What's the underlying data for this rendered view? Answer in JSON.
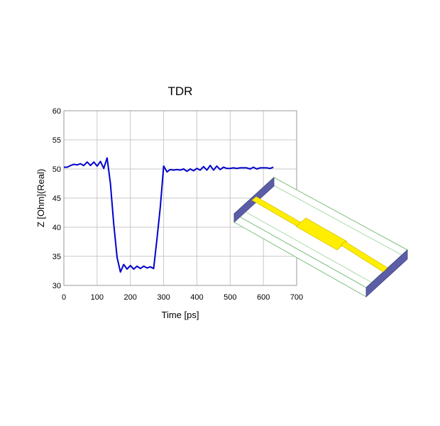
{
  "chart_data": {
    "type": "line",
    "title": "TDR",
    "xlabel": "Time [ps]",
    "ylabel": "Z [Ohm](Real)",
    "xlim": [
      0,
      700
    ],
    "ylim": [
      30,
      60
    ],
    "xticks": [
      0,
      100,
      200,
      300,
      400,
      500,
      600,
      700
    ],
    "yticks": [
      30,
      35,
      40,
      45,
      50,
      55,
      60
    ],
    "grid": true,
    "series": [
      {
        "color": "#0000cc",
        "x": [
          0,
          10,
          20,
          30,
          40,
          50,
          60,
          70,
          80,
          90,
          100,
          110,
          120,
          130,
          140,
          150,
          160,
          170,
          180,
          190,
          200,
          210,
          220,
          230,
          240,
          250,
          260,
          270,
          280,
          290,
          300,
          310,
          320,
          330,
          340,
          350,
          360,
          370,
          380,
          390,
          400,
          410,
          420,
          430,
          440,
          450,
          460,
          470,
          480,
          490,
          500,
          510,
          520,
          530,
          540,
          550,
          560,
          570,
          580,
          590,
          600,
          610,
          620,
          630
        ],
        "y": [
          50.3,
          50.3,
          50.6,
          50.8,
          50.7,
          50.9,
          50.6,
          51.2,
          50.6,
          51.2,
          50.5,
          51.3,
          50.1,
          51.9,
          47.5,
          40.5,
          34.8,
          32.3,
          33.6,
          32.8,
          33.4,
          32.8,
          33.3,
          32.9,
          33.3,
          33.0,
          33.2,
          32.9,
          38.0,
          43.5,
          50.5,
          49.5,
          49.9,
          49.8,
          49.9,
          49.8,
          50.0,
          49.6,
          50.0,
          49.7,
          50.1,
          49.8,
          50.4,
          49.8,
          50.6,
          49.8,
          50.5,
          49.9,
          50.3,
          50.1,
          50.1,
          50.2,
          50.1,
          50.2,
          50.2,
          50.2,
          50.0,
          50.3,
          50.0,
          50.2,
          50.2,
          50.2,
          50.1,
          50.3
        ]
      }
    ]
  },
  "model": {
    "substrate_side_color": "#5b5ea6",
    "substrate_edge_color": "#7dbf7d",
    "trace_color": "#ffee00"
  }
}
